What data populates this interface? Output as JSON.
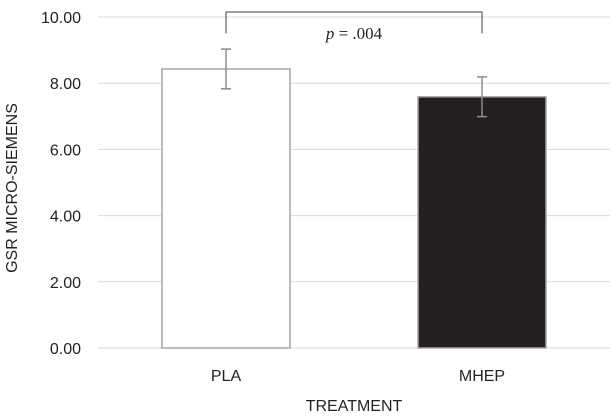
{
  "chart_data": {
    "type": "bar",
    "title": "",
    "xlabel": "TREATMENT",
    "ylabel": "GSR MICRO-SIEMENS",
    "categories": [
      "PLA",
      "MHEP"
    ],
    "values": [
      8.43,
      7.59
    ],
    "errors": [
      0.6,
      0.6
    ],
    "bar_colors": [
      "#ffffff",
      "#231f20"
    ],
    "bar_edge_colors": [
      "#a6a6a6",
      "#a6a6a6"
    ],
    "ylim": [
      0,
      10
    ],
    "y_ticks": [
      0,
      2,
      4,
      6,
      8,
      10
    ],
    "y_tick_labels": [
      "0.00",
      "2.00",
      "4.00",
      "6.00",
      "8.00",
      "10.00"
    ],
    "grid": true,
    "gridline_color": "#d9d9d9",
    "errorbar_color": "#8c8c8c",
    "annotation": {
      "p_symbol": "p",
      "rest": " = .004",
      "bracket_top_value": 10.15,
      "bracket_bottom_value": 9.5
    }
  }
}
